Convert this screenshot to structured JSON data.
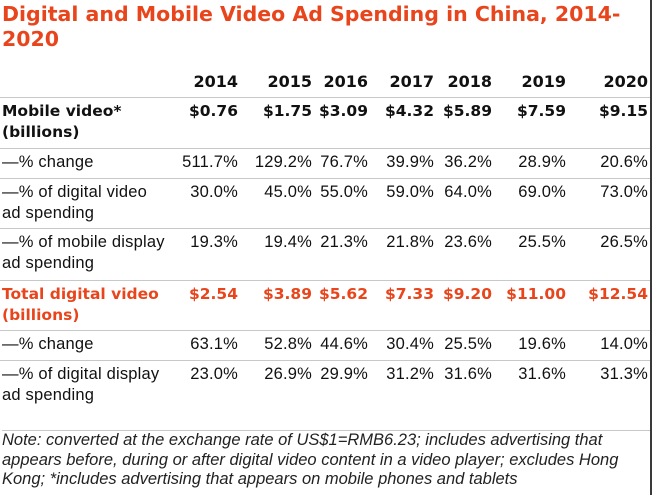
{
  "chart_data": {
    "type": "table",
    "title": "Digital and Mobile Video Ad Spending in China, 2014-2020",
    "columns": [
      "2014",
      "2015",
      "2016",
      "2017",
      "2018",
      "2019",
      "2020"
    ],
    "rows": [
      {
        "label": "Mobile video* (billions)",
        "values": [
          "$0.76",
          "$1.75",
          "$3.09",
          "$4.32",
          "$5.89",
          "$7.59",
          "$9.15"
        ]
      },
      {
        "label": "—% change",
        "values": [
          "511.7%",
          "129.2%",
          "76.7%",
          "39.9%",
          "36.2%",
          "28.9%",
          "20.6%"
        ]
      },
      {
        "label": "—% of digital video ad spending",
        "values": [
          "30.0%",
          "45.0%",
          "55.0%",
          "59.0%",
          "64.0%",
          "69.0%",
          "73.0%"
        ]
      },
      {
        "label": "—% of mobile display ad spending",
        "values": [
          "19.3%",
          "19.4%",
          "21.3%",
          "21.8%",
          "23.6%",
          "25.5%",
          "26.5%"
        ]
      },
      {
        "label": "Total digital video (billions)",
        "values": [
          "$2.54",
          "$3.89",
          "$5.62",
          "$7.33",
          "$9.20",
          "$11.00",
          "$12.54"
        ]
      },
      {
        "label": "—% change",
        "values": [
          "63.1%",
          "52.8%",
          "44.6%",
          "30.4%",
          "25.5%",
          "19.6%",
          "14.0%"
        ]
      },
      {
        "label": "—% of digital display ad spending",
        "values": [
          "23.0%",
          "26.9%",
          "29.9%",
          "31.2%",
          "31.6%",
          "31.6%",
          "31.3%"
        ]
      }
    ],
    "note": "Note: converted at the exchange rate of US$1=RMB6.23; includes advertising that appears before, during or after digital video content in a video player; excludes Hong Kong; *includes advertising that appears on mobile phones and tablets",
    "colors": {
      "accent": "#e8451c",
      "text": "#111111",
      "rule": "#c8c8c8"
    }
  }
}
